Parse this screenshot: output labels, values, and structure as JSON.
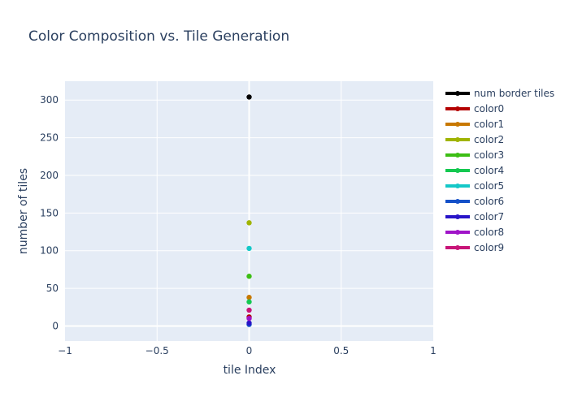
{
  "chart_data": {
    "type": "scatter",
    "title": "Color Composition vs. Tile Generation",
    "xlabel": "tile Index",
    "ylabel": "number of tiles",
    "xlim": [
      -1,
      1
    ],
    "ylim": [
      -20,
      325
    ],
    "x_ticks": [
      -1,
      -0.5,
      0,
      0.5,
      1
    ],
    "x_tick_labels": [
      "−1",
      "−0.5",
      "0",
      "0.5",
      "1"
    ],
    "y_ticks": [
      0,
      50,
      100,
      150,
      200,
      250,
      300
    ],
    "y_tick_labels": [
      "0",
      "50",
      "100",
      "150",
      "200",
      "250",
      "300"
    ],
    "grid": true,
    "legend_position": "right",
    "plot_background": "#e5ecf6",
    "series": [
      {
        "name": "num border tiles",
        "color": "#000000",
        "x": [
          0
        ],
        "y": [
          304
        ]
      },
      {
        "name": "color0",
        "color": "#b40000",
        "x": [
          0
        ],
        "y": [
          12
        ]
      },
      {
        "name": "color1",
        "color": "#c87800",
        "x": [
          0
        ],
        "y": [
          38
        ]
      },
      {
        "name": "color2",
        "color": "#a0b400",
        "x": [
          0
        ],
        "y": [
          137
        ]
      },
      {
        "name": "color3",
        "color": "#3cbe14",
        "x": [
          0
        ],
        "y": [
          66
        ]
      },
      {
        "name": "color4",
        "color": "#14c850",
        "x": [
          0
        ],
        "y": [
          32
        ]
      },
      {
        "name": "color5",
        "color": "#14c8c8",
        "x": [
          0
        ],
        "y": [
          103
        ]
      },
      {
        "name": "color6",
        "color": "#1450c8",
        "x": [
          0
        ],
        "y": [
          2
        ]
      },
      {
        "name": "color7",
        "color": "#2814c8",
        "x": [
          0
        ],
        "y": [
          4
        ]
      },
      {
        "name": "color8",
        "color": "#a014c8",
        "x": [
          0
        ],
        "y": [
          10
        ]
      },
      {
        "name": "color9",
        "color": "#c81478",
        "x": [
          0
        ],
        "y": [
          21
        ]
      }
    ]
  }
}
